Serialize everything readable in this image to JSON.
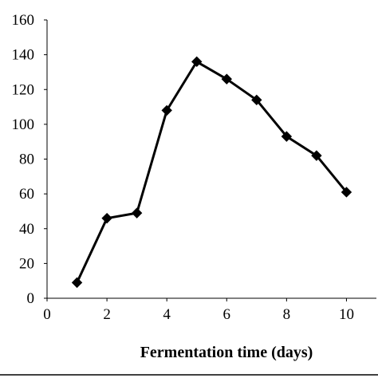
{
  "chart_data": {
    "type": "line",
    "title": "",
    "xlabel": "Fermentation time (days)",
    "ylabel": "",
    "x": [
      1,
      2,
      3,
      4,
      5,
      6,
      7,
      8,
      9,
      10
    ],
    "series": [
      {
        "values": [
          9,
          46,
          49,
          108,
          136,
          126,
          114,
          93,
          82,
          61
        ],
        "color": "#000000",
        "marker": "diamond"
      }
    ],
    "xlim": [
      0,
      11
    ],
    "ylim": [
      0,
      160
    ],
    "xticks": [
      0,
      2,
      4,
      6,
      8,
      10
    ],
    "yticks": [
      0,
      20,
      40,
      60,
      80,
      100,
      120,
      140,
      160
    ],
    "grid": false,
    "legend": "none"
  }
}
